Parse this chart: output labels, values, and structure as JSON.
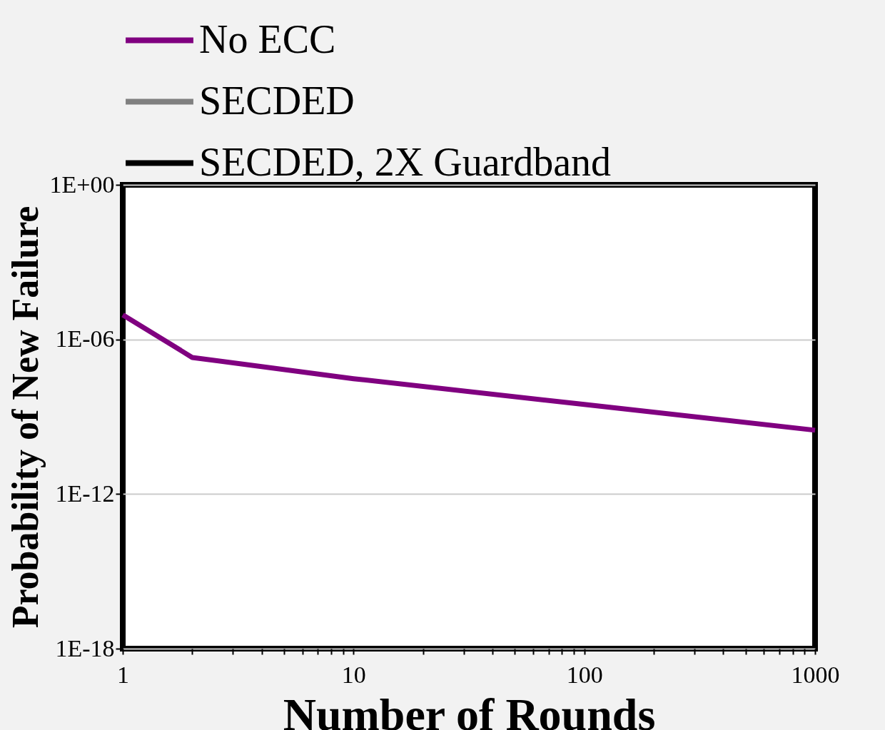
{
  "chart_data": {
    "type": "line",
    "xlabel": "Number of Rounds",
    "ylabel": "Probability of New Failure",
    "log": "xy",
    "x": [
      1,
      2,
      10,
      100,
      1000
    ],
    "series": [
      {
        "name": "No ECC",
        "color": "#800080",
        "values": [
          9e-06,
          2e-07,
          3e-08,
          3e-09,
          3e-10
        ]
      },
      {
        "name": "SECDED",
        "color": "#808080",
        "values": [
          null,
          null,
          null,
          null,
          null
        ]
      },
      {
        "name": "SECDED, 2X Guardband",
        "color": "#000000",
        "values": [
          null,
          null,
          null,
          null,
          null
        ]
      }
    ],
    "xlim": [
      1,
      1000
    ],
    "ylim": [
      1e-18,
      1
    ],
    "xticks": [
      1,
      {
        "value": 2,
        "label": null
      },
      {
        "value": 3,
        "label": null
      },
      {
        "value": 4,
        "label": null
      },
      {
        "value": 5,
        "label": null
      },
      {
        "value": 6,
        "label": null
      },
      {
        "value": 7,
        "label": null
      },
      {
        "value": 8,
        "label": null
      },
      {
        "value": 9,
        "label": null
      },
      10,
      {
        "value": 20,
        "label": null
      },
      {
        "value": 30,
        "label": null
      },
      {
        "value": 40,
        "label": null
      },
      {
        "value": 50,
        "label": null
      },
      {
        "value": 60,
        "label": null
      },
      {
        "value": 70,
        "label": null
      },
      {
        "value": 80,
        "label": null
      },
      {
        "value": 90,
        "label": null
      },
      100,
      {
        "value": 200,
        "label": null
      },
      {
        "value": 300,
        "label": null
      },
      {
        "value": 400,
        "label": null
      },
      {
        "value": 500,
        "label": null
      },
      {
        "value": 600,
        "label": null
      },
      {
        "value": 700,
        "label": null
      },
      {
        "value": 800,
        "label": null
      },
      {
        "value": 900,
        "label": null
      },
      1000
    ],
    "yticks": [
      {
        "value": 1e-18,
        "label": "1E-18"
      },
      {
        "value": 1e-12,
        "label": "1E-12"
      },
      {
        "value": 1e-06,
        "label": "1E-06"
      },
      {
        "value": 1,
        "label": "1E+00"
      }
    ],
    "grid": "y",
    "legend": "top",
    "line_style": "solid",
    "marker": "none"
  }
}
